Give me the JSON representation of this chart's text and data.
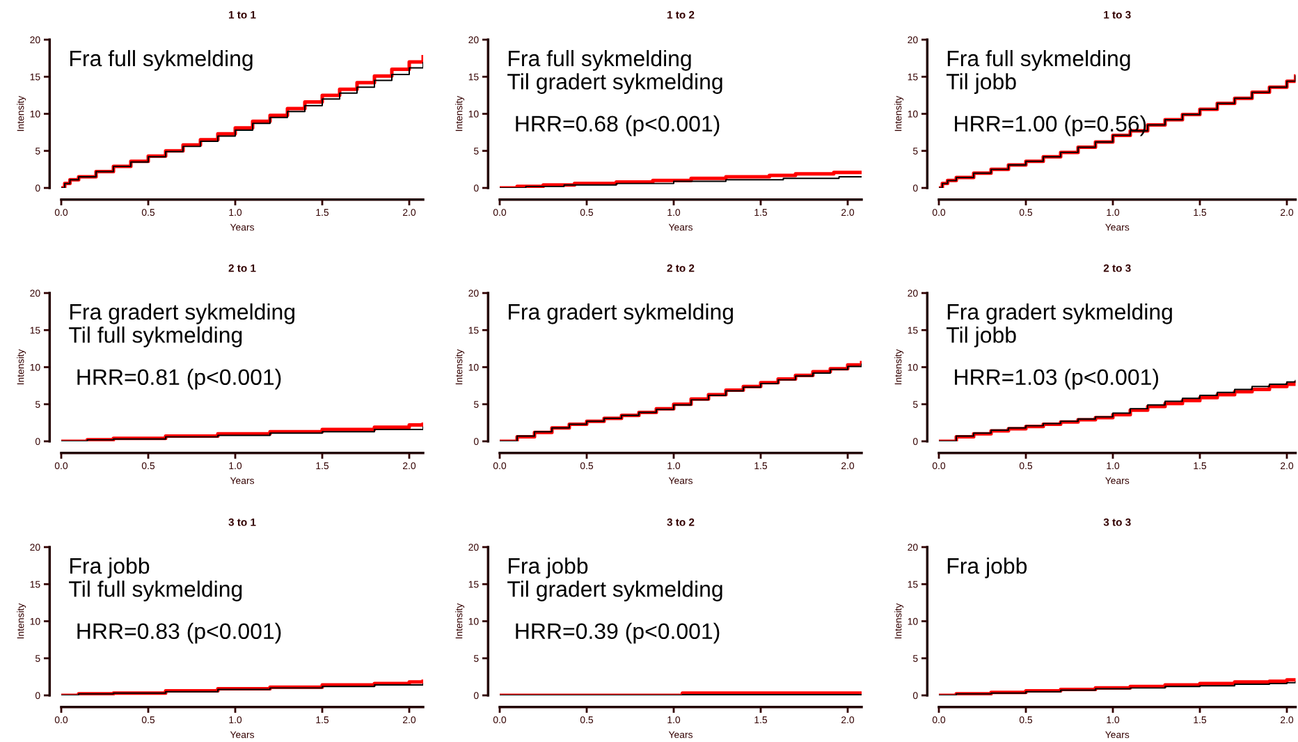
{
  "chart_data": [
    {
      "type": "step",
      "title": "1 to 1",
      "xlabel": "Years",
      "ylabel": "Intensity",
      "xlim": [
        0,
        2.08
      ],
      "ylim": [
        0,
        20
      ],
      "xticks": [
        {
          "value": 0,
          "label": "0.0"
        },
        {
          "value": 0.5,
          "label": "0.5"
        },
        {
          "value": 1,
          "label": "1.0"
        },
        {
          "value": 1.5,
          "label": "1.5"
        },
        {
          "value": 2,
          "label": "2.0"
        }
      ],
      "yticks": [
        0,
        5,
        10,
        15,
        20
      ],
      "annotations": [
        "Fra full sykmelding"
      ],
      "series": [
        {
          "color": "#ff0000",
          "x": [
            0,
            0.02,
            0.05,
            0.1,
            0.2,
            0.3,
            0.4,
            0.5,
            0.6,
            0.7,
            0.8,
            0.9,
            1.0,
            1.1,
            1.2,
            1.3,
            1.4,
            1.5,
            1.6,
            1.7,
            1.8,
            1.9,
            2.0,
            2.08
          ],
          "values": [
            0,
            0.6,
            1.1,
            1.5,
            2.2,
            2.9,
            3.6,
            4.3,
            5.0,
            5.8,
            6.5,
            7.3,
            8.1,
            9.0,
            9.8,
            10.7,
            11.6,
            12.5,
            13.3,
            14.2,
            15.1,
            16.0,
            17.0,
            17.7
          ]
        },
        {
          "color": "#000000",
          "x": [
            0,
            0.02,
            0.05,
            0.1,
            0.2,
            0.3,
            0.4,
            0.5,
            0.6,
            0.7,
            0.8,
            0.9,
            1.0,
            1.1,
            1.2,
            1.3,
            1.4,
            1.5,
            1.6,
            1.7,
            1.8,
            1.9,
            2.0,
            2.08
          ],
          "values": [
            0,
            0.6,
            1.1,
            1.5,
            2.2,
            2.9,
            3.5,
            4.2,
            4.9,
            5.6,
            6.3,
            7.0,
            7.8,
            8.7,
            9.5,
            10.3,
            11.1,
            12.0,
            12.8,
            13.6,
            14.5,
            15.3,
            16.2,
            16.9
          ]
        }
      ]
    },
    {
      "type": "step",
      "title": "1 to 2",
      "xlabel": "Years",
      "ylabel": "Intensity",
      "xlim": [
        0,
        2.08
      ],
      "ylim": [
        0,
        20
      ],
      "xticks": [
        {
          "value": 0,
          "label": "0.0"
        },
        {
          "value": 0.5,
          "label": "0.5"
        },
        {
          "value": 1,
          "label": "1.0"
        },
        {
          "value": 1.5,
          "label": "1.5"
        },
        {
          "value": 2,
          "label": "2.0"
        }
      ],
      "yticks": [
        0,
        5,
        10,
        15,
        20
      ],
      "annotations": [
        "Fra full sykmelding\nTil gradert sykmelding",
        "HRR=0.68 (p<0.001)"
      ],
      "series": [
        {
          "color": "#ff0000",
          "x": [
            0,
            0.1,
            0.25,
            0.43,
            0.67,
            0.88,
            1.1,
            1.3,
            1.55,
            1.7,
            1.92,
            2.08
          ],
          "values": [
            0,
            0.2,
            0.4,
            0.6,
            0.8,
            1.0,
            1.3,
            1.5,
            1.7,
            1.9,
            2.1,
            2.1
          ]
        },
        {
          "color": "#000000",
          "x": [
            0,
            0.15,
            0.37,
            0.67,
            1.0,
            1.3,
            1.63,
            1.95,
            2.08
          ],
          "values": [
            0,
            0.2,
            0.4,
            0.6,
            0.9,
            1.1,
            1.3,
            1.5,
            1.5
          ]
        }
      ]
    },
    {
      "type": "step",
      "title": "1 to 3",
      "xlabel": "Years",
      "ylabel": "Intensity",
      "xlim": [
        0,
        2.05
      ],
      "ylim": [
        0,
        20
      ],
      "xticks": [
        {
          "value": 0,
          "label": "0.0"
        },
        {
          "value": 0.5,
          "label": "0.5"
        },
        {
          "value": 1,
          "label": "1.0"
        },
        {
          "value": 1.5,
          "label": "1.5"
        },
        {
          "value": 2,
          "label": "2.0"
        }
      ],
      "yticks": [
        0,
        5,
        10,
        15,
        20
      ],
      "annotations": [
        "Fra full sykmelding\nTil jobb",
        "HRR=1.00 (p=0.56)"
      ],
      "series": [
        {
          "color": "#ff0000",
          "x": [
            0,
            0.02,
            0.05,
            0.1,
            0.2,
            0.3,
            0.4,
            0.5,
            0.6,
            0.7,
            0.8,
            0.9,
            1.0,
            1.1,
            1.2,
            1.3,
            1.4,
            1.5,
            1.6,
            1.7,
            1.8,
            1.9,
            2.0,
            2.05
          ],
          "values": [
            0,
            0.6,
            1.0,
            1.4,
            2.0,
            2.5,
            3.1,
            3.6,
            4.2,
            4.8,
            5.5,
            6.2,
            7.1,
            7.7,
            8.5,
            9.2,
            9.9,
            10.6,
            11.4,
            12.1,
            12.9,
            13.6,
            14.4,
            15.1
          ]
        },
        {
          "color": "#000000",
          "x": [
            0,
            0.02,
            0.05,
            0.1,
            0.2,
            0.3,
            0.4,
            0.5,
            0.6,
            0.7,
            0.8,
            0.9,
            1.0,
            1.1,
            1.2,
            1.3,
            1.4,
            1.5,
            1.6,
            1.7,
            1.8,
            1.9,
            2.0,
            2.05
          ],
          "values": [
            0,
            0.6,
            1.0,
            1.4,
            2.0,
            2.5,
            3.1,
            3.6,
            4.2,
            4.8,
            5.5,
            6.2,
            7.1,
            7.7,
            8.5,
            9.2,
            9.9,
            10.6,
            11.4,
            12.1,
            12.9,
            13.6,
            14.4,
            15.1
          ]
        }
      ]
    },
    {
      "type": "step",
      "title": "2 to 1",
      "xlabel": "Years",
      "ylabel": "Intensity",
      "xlim": [
        0,
        2.08
      ],
      "ylim": [
        0,
        20
      ],
      "xticks": [
        {
          "value": 0,
          "label": "0.0"
        },
        {
          "value": 0.5,
          "label": "0.5"
        },
        {
          "value": 1,
          "label": "1.0"
        },
        {
          "value": 1.5,
          "label": "1.5"
        },
        {
          "value": 2,
          "label": "2.0"
        }
      ],
      "yticks": [
        0,
        5,
        10,
        15,
        20
      ],
      "annotations": [
        "Fra gradert sykmelding\nTil full sykmelding",
        "HRR=0.81 (p<0.001)"
      ],
      "series": [
        {
          "color": "#ff0000",
          "x": [
            0,
            0.15,
            0.3,
            0.6,
            0.9,
            1.2,
            1.5,
            1.8,
            2.0,
            2.08
          ],
          "values": [
            0,
            0.2,
            0.4,
            0.7,
            1.0,
            1.3,
            1.6,
            1.9,
            2.2,
            2.3
          ]
        },
        {
          "color": "#000000",
          "x": [
            0,
            0.15,
            0.3,
            0.6,
            0.9,
            1.2,
            1.5,
            1.8,
            2.08
          ],
          "values": [
            0,
            0.2,
            0.3,
            0.6,
            0.8,
            1.1,
            1.3,
            1.6,
            1.9
          ]
        }
      ]
    },
    {
      "type": "step",
      "title": "2 to 2",
      "xlabel": "Years",
      "ylabel": "Intensity",
      "xlim": [
        0,
        2.08
      ],
      "ylim": [
        0,
        20
      ],
      "xticks": [
        {
          "value": 0,
          "label": "0.0"
        },
        {
          "value": 0.5,
          "label": "0.5"
        },
        {
          "value": 1,
          "label": "1.0"
        },
        {
          "value": 1.5,
          "label": "1.5"
        },
        {
          "value": 2,
          "label": "2.0"
        }
      ],
      "yticks": [
        0,
        5,
        10,
        15,
        20
      ],
      "annotations": [
        "Fra gradert sykmelding"
      ],
      "series": [
        {
          "color": "#ff0000",
          "x": [
            0,
            0.1,
            0.2,
            0.3,
            0.4,
            0.5,
            0.6,
            0.7,
            0.8,
            0.9,
            1.0,
            1.1,
            1.2,
            1.3,
            1.4,
            1.5,
            1.6,
            1.7,
            1.8,
            1.9,
            2.0,
            2.08
          ],
          "values": [
            0,
            0.6,
            1.2,
            1.8,
            2.3,
            2.7,
            3.1,
            3.5,
            3.9,
            4.4,
            5.0,
            5.7,
            6.3,
            6.9,
            7.4,
            7.9,
            8.4,
            8.9,
            9.4,
            9.8,
            10.3,
            10.6
          ]
        },
        {
          "color": "#000000",
          "x": [
            0,
            0.1,
            0.2,
            0.3,
            0.4,
            0.5,
            0.6,
            0.7,
            0.8,
            0.9,
            1.0,
            1.1,
            1.2,
            1.3,
            1.4,
            1.5,
            1.6,
            1.7,
            1.8,
            1.9,
            2.0,
            2.08
          ],
          "values": [
            0,
            0.7,
            1.3,
            1.8,
            2.3,
            2.7,
            3.1,
            3.5,
            3.9,
            4.3,
            4.9,
            5.6,
            6.2,
            6.8,
            7.3,
            7.8,
            8.3,
            8.8,
            9.2,
            9.7,
            10.1,
            10.4
          ]
        }
      ]
    },
    {
      "type": "step",
      "title": "2 to 3",
      "xlabel": "Years",
      "ylabel": "Intensity",
      "xlim": [
        0,
        2.05
      ],
      "ylim": [
        0,
        20
      ],
      "xticks": [
        {
          "value": 0,
          "label": "0.0"
        },
        {
          "value": 0.5,
          "label": "0.5"
        },
        {
          "value": 1,
          "label": "1.0"
        },
        {
          "value": 1.5,
          "label": "1.5"
        },
        {
          "value": 2,
          "label": "2.0"
        }
      ],
      "yticks": [
        0,
        5,
        10,
        15,
        20
      ],
      "annotations": [
        "Fra gradert sykmelding\nTil jobb",
        "HRR=1.03 (p<0.001)"
      ],
      "series": [
        {
          "color": "#ff0000",
          "x": [
            0,
            0.1,
            0.2,
            0.3,
            0.4,
            0.5,
            0.6,
            0.7,
            0.8,
            0.9,
            1.0,
            1.1,
            1.2,
            1.3,
            1.4,
            1.5,
            1.6,
            1.7,
            1.8,
            1.9,
            2.0,
            2.05
          ],
          "values": [
            0,
            0.6,
            1.0,
            1.4,
            1.7,
            2.0,
            2.3,
            2.6,
            2.9,
            3.2,
            3.6,
            4.2,
            4.7,
            5.1,
            5.5,
            5.9,
            6.3,
            6.7,
            7.0,
            7.4,
            7.7,
            7.9
          ]
        },
        {
          "color": "#000000",
          "x": [
            0,
            0.1,
            0.2,
            0.3,
            0.4,
            0.5,
            0.6,
            0.7,
            0.8,
            0.9,
            1.0,
            1.1,
            1.2,
            1.3,
            1.4,
            1.5,
            1.6,
            1.7,
            1.8,
            1.9,
            2.0,
            2.05
          ],
          "values": [
            0,
            0.7,
            1.1,
            1.5,
            1.8,
            2.1,
            2.4,
            2.7,
            3.0,
            3.3,
            3.8,
            4.4,
            4.9,
            5.4,
            5.8,
            6.2,
            6.6,
            7.0,
            7.4,
            7.7,
            8.0,
            8.2
          ]
        }
      ]
    },
    {
      "type": "step",
      "title": "3 to 1",
      "xlabel": "Years",
      "ylabel": "Intensity",
      "xlim": [
        0,
        2.08
      ],
      "ylim": [
        0,
        20
      ],
      "xticks": [
        {
          "value": 0,
          "label": "0.0"
        },
        {
          "value": 0.5,
          "label": "0.5"
        },
        {
          "value": 1,
          "label": "1.0"
        },
        {
          "value": 1.5,
          "label": "1.5"
        },
        {
          "value": 2,
          "label": "2.0"
        }
      ],
      "yticks": [
        0,
        5,
        10,
        15,
        20
      ],
      "annotations": [
        "Fra jobb\nTil full sykmelding",
        "HRR=0.83 (p<0.001)"
      ],
      "series": [
        {
          "color": "#ff0000",
          "x": [
            0,
            0.1,
            0.3,
            0.6,
            0.9,
            1.2,
            1.5,
            1.8,
            2.0,
            2.08
          ],
          "values": [
            0,
            0.2,
            0.3,
            0.6,
            0.9,
            1.1,
            1.4,
            1.6,
            1.8,
            1.9
          ]
        },
        {
          "color": "#000000",
          "x": [
            0,
            0.1,
            0.3,
            0.6,
            0.9,
            1.2,
            1.5,
            1.8,
            2.08
          ],
          "values": [
            0,
            0.2,
            0.3,
            0.5,
            0.8,
            1.0,
            1.2,
            1.4,
            1.5
          ]
        }
      ]
    },
    {
      "type": "step",
      "title": "3 to 2",
      "xlabel": "Years",
      "ylabel": "Intensity",
      "xlim": [
        0,
        2.08
      ],
      "ylim": [
        0,
        20
      ],
      "xticks": [
        {
          "value": 0,
          "label": "0.0"
        },
        {
          "value": 0.5,
          "label": "0.5"
        },
        {
          "value": 1,
          "label": "1.0"
        },
        {
          "value": 1.5,
          "label": "1.5"
        },
        {
          "value": 2,
          "label": "2.0"
        }
      ],
      "yticks": [
        0,
        5,
        10,
        15,
        20
      ],
      "annotations": [
        "Fra jobb\nTil gradert sykmelding",
        "HRR=0.39 (p<0.001)"
      ],
      "series": [
        {
          "color": "#ff0000",
          "x": [
            0,
            1.05,
            2.08
          ],
          "values": [
            0,
            0.3,
            0.3
          ]
        },
        {
          "color": "#000000",
          "x": [
            0,
            1.05,
            2.08
          ],
          "values": [
            0,
            0.1,
            0.1
          ]
        }
      ]
    },
    {
      "type": "step",
      "title": "3 to 3",
      "xlabel": "Years",
      "ylabel": "Intensity",
      "xlim": [
        0,
        2.05
      ],
      "ylim": [
        0,
        20
      ],
      "xticks": [
        {
          "value": 0,
          "label": "0.0"
        },
        {
          "value": 0.5,
          "label": "0.5"
        },
        {
          "value": 1,
          "label": "1.0"
        },
        {
          "value": 1.5,
          "label": "1.5"
        },
        {
          "value": 2,
          "label": "2.0"
        }
      ],
      "yticks": [
        0,
        5,
        10,
        15,
        20
      ],
      "annotations": [
        "Fra jobb"
      ],
      "series": [
        {
          "color": "#ff0000",
          "x": [
            0,
            0.1,
            0.3,
            0.5,
            0.7,
            0.9,
            1.1,
            1.3,
            1.5,
            1.7,
            1.9,
            2.0,
            2.05
          ],
          "values": [
            0,
            0.2,
            0.4,
            0.6,
            0.8,
            1.0,
            1.2,
            1.4,
            1.6,
            1.8,
            1.9,
            2.1,
            2.1
          ]
        },
        {
          "color": "#000000",
          "x": [
            0,
            0.1,
            0.3,
            0.5,
            0.7,
            0.9,
            1.1,
            1.3,
            1.5,
            1.7,
            1.9,
            2.0,
            2.05
          ],
          "values": [
            0,
            0.2,
            0.3,
            0.5,
            0.7,
            0.9,
            1.0,
            1.2,
            1.3,
            1.5,
            1.6,
            1.7,
            1.8
          ]
        }
      ]
    }
  ]
}
